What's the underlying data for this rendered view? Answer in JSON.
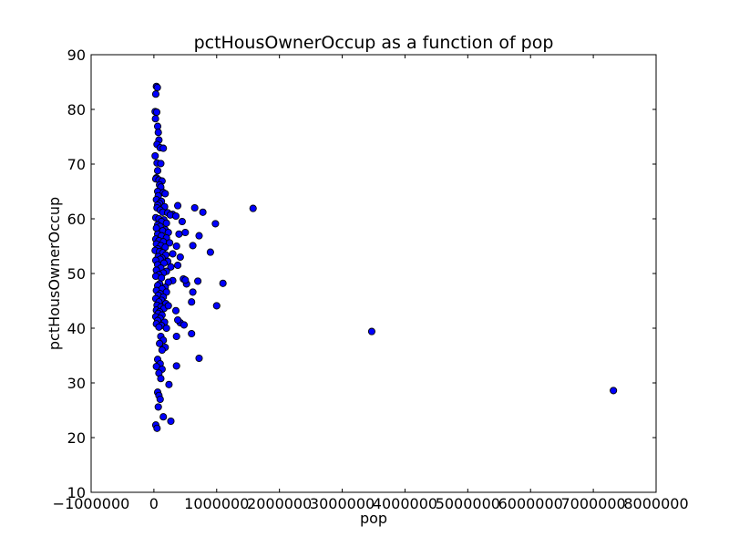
{
  "chart_data": {
    "type": "scatter",
    "title": "pctHousOwnerOccup as a function of pop",
    "xlabel": "pop",
    "ylabel": "pctHousOwnerOccup",
    "xlim": [
      -1000000,
      8000000
    ],
    "ylim": [
      10,
      90
    ],
    "xticks": [
      -1000000,
      0,
      1000000,
      2000000,
      3000000,
      4000000,
      5000000,
      6000000,
      7000000,
      8000000
    ],
    "xtick_labels": [
      "−1000000",
      "0",
      "1000000",
      "2000000",
      "3000000",
      "4000000",
      "5000000",
      "6000000",
      "7000000",
      "8000000"
    ],
    "yticks": [
      10,
      20,
      30,
      40,
      50,
      60,
      70,
      80,
      90
    ],
    "ytick_labels": [
      "10",
      "20",
      "30",
      "40",
      "50",
      "60",
      "70",
      "80",
      "90"
    ],
    "grid": false,
    "legend": "none",
    "marker_color": "#0000ff",
    "marker_edge_color": "#000000",
    "points": [
      [
        40000,
        84.2
      ],
      [
        55000,
        84.0
      ],
      [
        30000,
        82.8
      ],
      [
        20000,
        79.6
      ],
      [
        45000,
        79.5
      ],
      [
        25000,
        78.3
      ],
      [
        60000,
        76.9
      ],
      [
        70000,
        75.8
      ],
      [
        80000,
        74.4
      ],
      [
        50000,
        73.6
      ],
      [
        100000,
        73.0
      ],
      [
        150000,
        72.9
      ],
      [
        20000,
        71.5
      ],
      [
        50000,
        70.2
      ],
      [
        110000,
        70.1
      ],
      [
        60000,
        68.8
      ],
      [
        40000,
        67.5
      ],
      [
        30000,
        67.3
      ],
      [
        80000,
        67.1
      ],
      [
        130000,
        66.9
      ],
      [
        90000,
        66.2
      ],
      [
        110000,
        65.8
      ],
      [
        60000,
        65.0
      ],
      [
        150000,
        64.8
      ],
      [
        180000,
        64.6
      ],
      [
        70000,
        64.2
      ],
      [
        40000,
        63.5
      ],
      [
        120000,
        63.2
      ],
      [
        90000,
        62.8
      ],
      [
        60000,
        62.5
      ],
      [
        380000,
        62.4
      ],
      [
        170000,
        62.2
      ],
      [
        50000,
        62.0
      ],
      [
        100000,
        61.6
      ],
      [
        140000,
        61.2
      ],
      [
        220000,
        61.1
      ],
      [
        300000,
        60.8
      ],
      [
        260000,
        60.7
      ],
      [
        350000,
        60.5
      ],
      [
        30000,
        60.2
      ],
      [
        80000,
        60.0
      ],
      [
        160000,
        59.8
      ],
      [
        120000,
        59.5
      ],
      [
        450000,
        59.5
      ],
      [
        200000,
        59.2
      ],
      [
        60000,
        58.9
      ],
      [
        100000,
        58.6
      ],
      [
        40000,
        58.3
      ],
      [
        180000,
        58.0
      ],
      [
        140000,
        57.8
      ],
      [
        230000,
        57.5
      ],
      [
        60000,
        57.2
      ],
      [
        400000,
        57.2
      ],
      [
        500000,
        57.5
      ],
      [
        120000,
        56.9
      ],
      [
        200000,
        56.5
      ],
      [
        30000,
        56.3
      ],
      [
        80000,
        56.0
      ],
      [
        150000,
        55.8
      ],
      [
        250000,
        55.6
      ],
      [
        40000,
        55.4
      ],
      [
        110000,
        55.1
      ],
      [
        360000,
        55.0
      ],
      [
        180000,
        54.8
      ],
      [
        60000,
        54.5
      ],
      [
        20000,
        54.2
      ],
      [
        90000,
        54.0
      ],
      [
        140000,
        53.8
      ],
      [
        300000,
        53.6
      ],
      [
        190000,
        53.4
      ],
      [
        70000,
        53.1
      ],
      [
        420000,
        53.0
      ],
      [
        130000,
        52.8
      ],
      [
        100000,
        52.6
      ],
      [
        30000,
        52.4
      ],
      [
        220000,
        52.2
      ],
      [
        160000,
        51.9
      ],
      [
        60000,
        51.6
      ],
      [
        380000,
        51.5
      ],
      [
        270000,
        51.2
      ],
      [
        110000,
        51.0
      ],
      [
        40000,
        50.6
      ],
      [
        200000,
        50.4
      ],
      [
        150000,
        50.1
      ],
      [
        80000,
        49.8
      ],
      [
        30000,
        49.5
      ],
      [
        120000,
        49.2
      ],
      [
        470000,
        49.0
      ],
      [
        300000,
        48.7
      ],
      [
        230000,
        48.4
      ],
      [
        90000,
        48.1
      ],
      [
        60000,
        47.8
      ],
      [
        180000,
        47.5
      ],
      [
        130000,
        47.2
      ],
      [
        40000,
        46.9
      ],
      [
        200000,
        46.6
      ],
      [
        100000,
        46.3
      ],
      [
        70000,
        46.0
      ],
      [
        150000,
        45.7
      ],
      [
        30000,
        45.4
      ],
      [
        120000,
        45.1
      ],
      [
        80000,
        44.8
      ],
      [
        190000,
        44.5
      ],
      [
        50000,
        44.2
      ],
      [
        110000,
        43.9
      ],
      [
        160000,
        43.6
      ],
      [
        40000,
        43.3
      ],
      [
        90000,
        43.0
      ],
      [
        230000,
        44.1
      ],
      [
        350000,
        43.2
      ],
      [
        70000,
        42.7
      ],
      [
        130000,
        42.4
      ],
      [
        30000,
        42.1
      ],
      [
        100000,
        41.8
      ],
      [
        60000,
        41.4
      ],
      [
        170000,
        41.1
      ],
      [
        40000,
        40.8
      ],
      [
        120000,
        40.5
      ],
      [
        80000,
        40.2
      ],
      [
        420000,
        41.0
      ],
      [
        480000,
        40.6
      ],
      [
        380000,
        41.5
      ],
      [
        200000,
        40.0
      ],
      [
        110000,
        38.5
      ],
      [
        150000,
        37.8
      ],
      [
        90000,
        37.2
      ],
      [
        180000,
        36.5
      ],
      [
        130000,
        36.0
      ],
      [
        60000,
        34.3
      ],
      [
        100000,
        33.5
      ],
      [
        40000,
        33.0
      ],
      [
        130000,
        32.5
      ],
      [
        80000,
        31.8
      ],
      [
        110000,
        30.8
      ],
      [
        60000,
        28.3
      ],
      [
        80000,
        27.7
      ],
      [
        100000,
        27.0
      ],
      [
        70000,
        25.6
      ],
      [
        150000,
        23.8
      ],
      [
        270000,
        23.0
      ],
      [
        30000,
        22.3
      ],
      [
        50000,
        21.7
      ],
      [
        240000,
        29.7
      ],
      [
        360000,
        33.1
      ],
      [
        360000,
        38.5
      ],
      [
        600000,
        39.0
      ],
      [
        720000,
        34.5
      ],
      [
        1000000,
        44.1
      ],
      [
        600000,
        44.8
      ],
      [
        620000,
        46.6
      ],
      [
        520000,
        48.1
      ],
      [
        500000,
        48.8
      ],
      [
        700000,
        48.6
      ],
      [
        1100000,
        48.2
      ],
      [
        900000,
        53.9
      ],
      [
        620000,
        55.1
      ],
      [
        720000,
        56.9
      ],
      [
        980000,
        59.1
      ],
      [
        780000,
        61.2
      ],
      [
        650000,
        62.0
      ],
      [
        1580000,
        61.9
      ],
      [
        3470000,
        39.4
      ],
      [
        7320000,
        28.6
      ]
    ]
  }
}
